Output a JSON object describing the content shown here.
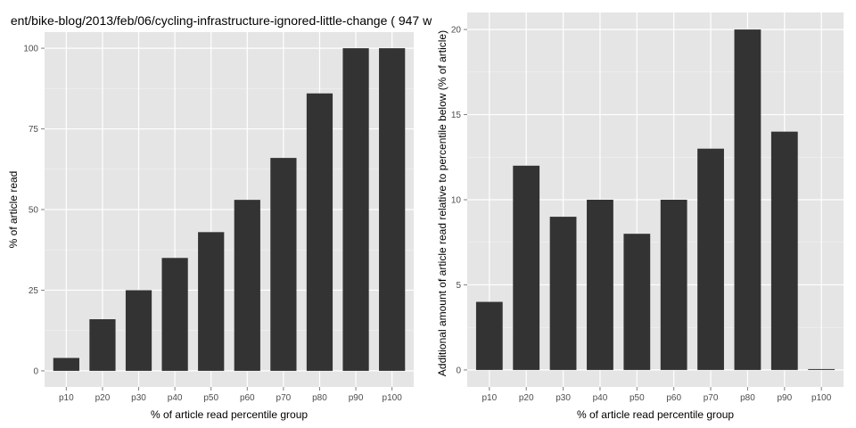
{
  "chart_data": [
    {
      "type": "bar",
      "title": "ent/bike-blog/2013/feb/06/cycling-infrastructure-ignored-little-change ( 947 w",
      "xlabel": "% of article read percentile group",
      "ylabel": "% of article read",
      "categories": [
        "p10",
        "p20",
        "p30",
        "p40",
        "p50",
        "p60",
        "p70",
        "p80",
        "p90",
        "p100"
      ],
      "values": [
        4,
        16,
        25,
        35,
        43,
        53,
        66,
        86,
        100,
        100
      ],
      "ylim": [
        -5,
        105
      ],
      "yticks": [
        0,
        25,
        50,
        75,
        100
      ],
      "bar_color": "#333333",
      "panel_color": "#e5e5e5",
      "grid": true
    },
    {
      "type": "bar",
      "title": "",
      "xlabel": "% of article read percentile group",
      "ylabel": "Additional amount of article read relative to percentile below (% of article)",
      "categories": [
        "p10",
        "p20",
        "p30",
        "p40",
        "p50",
        "p60",
        "p70",
        "p80",
        "p90",
        "p100"
      ],
      "values": [
        4,
        12,
        9,
        10,
        8,
        10,
        13,
        20,
        14,
        0
      ],
      "ylim": [
        -1,
        21
      ],
      "yticks": [
        0,
        5,
        10,
        15,
        20
      ],
      "bar_color": "#333333",
      "panel_color": "#e5e5e5",
      "grid": true
    }
  ]
}
